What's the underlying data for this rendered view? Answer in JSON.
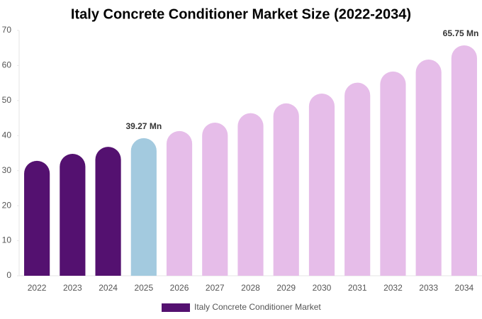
{
  "chart_data": {
    "type": "bar",
    "title": "Italy Concrete Conditioner Market Size (2022-2034)",
    "categories": [
      "2022",
      "2023",
      "2024",
      "2025",
      "2026",
      "2027",
      "2028",
      "2029",
      "2030",
      "2031",
      "2032",
      "2033",
      "2034"
    ],
    "series": [
      {
        "name": "Italy Concrete Conditioner Market",
        "color": "#541170",
        "values": [
          32.8,
          34.8,
          36.8,
          39.27,
          41.3,
          43.7,
          46.4,
          49.2,
          52.0,
          55.1,
          58.3,
          61.7,
          65.75
        ],
        "value_labels": [
          null,
          null,
          null,
          "39.27 Mn",
          null,
          null,
          null,
          null,
          null,
          null,
          null,
          null,
          "65.75 Mn"
        ],
        "colors": [
          "#541170",
          "#541170",
          "#541170",
          "#a3cadf",
          "#e6bde9",
          "#e6bde9",
          "#e6bde9",
          "#e6bde9",
          "#e6bde9",
          "#e6bde9",
          "#e6bde9",
          "#e6bde9",
          "#e6bde9"
        ]
      }
    ],
    "ylim": [
      0,
      70
    ],
    "yticks": [
      0,
      10,
      20,
      30,
      40,
      50,
      60,
      70
    ],
    "grid": false
  }
}
